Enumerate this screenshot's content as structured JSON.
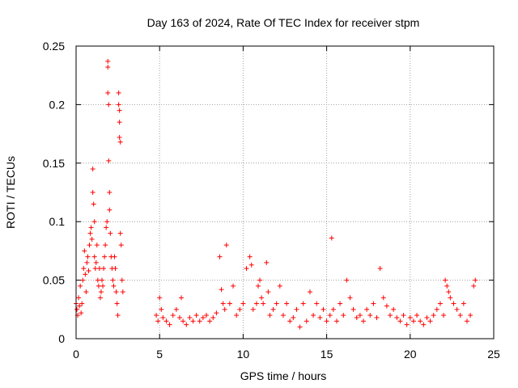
{
  "chart_data": {
    "type": "scatter",
    "title": "Day 163 of 2024, Rate Of TEC Index for receiver stpm",
    "xlabel": "GPS time / hours",
    "ylabel": "ROTI / TECUs",
    "xlim": [
      0,
      25
    ],
    "ylim": [
      0,
      0.25
    ],
    "xticks": [
      0,
      5,
      10,
      15,
      20,
      25
    ],
    "xtick_labels": [
      "0",
      "5",
      "10",
      "15",
      "20",
      "25"
    ],
    "yticks": [
      0,
      0.05,
      0.1,
      0.15,
      0.2,
      0.25
    ],
    "ytick_labels": [
      "0",
      "0.05",
      "0.1",
      "0.15",
      "0.2",
      "0.25"
    ],
    "grid": true,
    "marker": "+",
    "series": [
      {
        "name": "ROTI",
        "color": "#ff0000",
        "x": [
          0.0,
          0.05,
          0.1,
          0.15,
          0.2,
          0.25,
          0.3,
          0.35,
          0.4,
          0.45,
          0.5,
          0.55,
          0.6,
          0.65,
          0.7,
          0.75,
          0.8,
          0.85,
          0.9,
          0.95,
          1.0,
          1.0,
          1.05,
          1.1,
          1.1,
          1.15,
          1.2,
          1.25,
          1.3,
          1.35,
          1.4,
          1.45,
          1.5,
          1.55,
          1.6,
          1.65,
          1.7,
          1.75,
          1.8,
          1.85,
          1.9,
          1.9,
          1.9,
          1.95,
          1.95,
          2.0,
          2.0,
          2.05,
          2.1,
          2.15,
          2.2,
          2.25,
          2.3,
          2.35,
          2.4,
          2.45,
          2.5,
          2.55,
          2.55,
          2.6,
          2.6,
          2.6,
          2.65,
          2.65,
          2.7,
          2.75,
          2.8,
          4.8,
          4.9,
          5.0,
          5.1,
          5.2,
          5.4,
          5.6,
          5.8,
          6.0,
          6.2,
          6.3,
          6.4,
          6.6,
          6.8,
          7.0,
          7.2,
          7.4,
          7.6,
          7.8,
          8.0,
          8.2,
          8.4,
          8.6,
          8.7,
          8.8,
          8.9,
          9.0,
          9.2,
          9.4,
          9.6,
          9.8,
          10.0,
          10.2,
          10.4,
          10.5,
          10.6,
          10.8,
          10.9,
          11.0,
          11.1,
          11.2,
          11.4,
          11.5,
          11.6,
          11.8,
          12.0,
          12.2,
          12.4,
          12.6,
          12.8,
          13.0,
          13.2,
          13.4,
          13.6,
          13.8,
          14.0,
          14.2,
          14.4,
          14.6,
          14.8,
          15.0,
          15.2,
          15.3,
          15.4,
          15.6,
          15.8,
          16.0,
          16.2,
          16.4,
          16.6,
          16.8,
          17.0,
          17.2,
          17.4,
          17.6,
          17.8,
          18.0,
          18.2,
          18.4,
          18.6,
          18.8,
          19.0,
          19.2,
          19.4,
          19.6,
          19.8,
          20.0,
          20.2,
          20.4,
          20.6,
          20.8,
          21.0,
          21.2,
          21.4,
          21.6,
          21.8,
          22.0,
          22.1,
          22.2,
          22.3,
          22.4,
          22.6,
          22.8,
          23.0,
          23.2,
          23.4,
          23.6,
          23.8,
          23.9
        ],
        "y": [
          0.03,
          0.025,
          0.02,
          0.035,
          0.028,
          0.045,
          0.022,
          0.03,
          0.05,
          0.06,
          0.075,
          0.055,
          0.04,
          0.065,
          0.07,
          0.058,
          0.08,
          0.09,
          0.095,
          0.085,
          0.145,
          0.125,
          0.115,
          0.1,
          0.07,
          0.06,
          0.065,
          0.08,
          0.05,
          0.045,
          0.06,
          0.035,
          0.04,
          0.05,
          0.045,
          0.06,
          0.07,
          0.08,
          0.095,
          0.1,
          0.237,
          0.232,
          0.21,
          0.2,
          0.152,
          0.125,
          0.11,
          0.09,
          0.07,
          0.06,
          0.05,
          0.045,
          0.07,
          0.06,
          0.04,
          0.03,
          0.02,
          0.21,
          0.2,
          0.195,
          0.185,
          0.172,
          0.168,
          0.09,
          0.08,
          0.05,
          0.04,
          0.02,
          0.015,
          0.035,
          0.025,
          0.018,
          0.015,
          0.012,
          0.02,
          0.025,
          0.018,
          0.035,
          0.015,
          0.012,
          0.018,
          0.015,
          0.02,
          0.015,
          0.018,
          0.02,
          0.015,
          0.018,
          0.022,
          0.07,
          0.042,
          0.03,
          0.025,
          0.08,
          0.03,
          0.045,
          0.02,
          0.025,
          0.03,
          0.06,
          0.07,
          0.063,
          0.025,
          0.03,
          0.045,
          0.05,
          0.035,
          0.03,
          0.065,
          0.04,
          0.02,
          0.025,
          0.03,
          0.045,
          0.02,
          0.03,
          0.015,
          0.018,
          0.025,
          0.01,
          0.03,
          0.015,
          0.04,
          0.02,
          0.03,
          0.018,
          0.025,
          0.015,
          0.02,
          0.086,
          0.025,
          0.015,
          0.03,
          0.02,
          0.05,
          0.035,
          0.025,
          0.018,
          0.02,
          0.015,
          0.025,
          0.02,
          0.03,
          0.018,
          0.06,
          0.035,
          0.028,
          0.02,
          0.025,
          0.018,
          0.015,
          0.02,
          0.012,
          0.018,
          0.015,
          0.02,
          0.015,
          0.012,
          0.018,
          0.015,
          0.02,
          0.025,
          0.03,
          0.02,
          0.05,
          0.045,
          0.04,
          0.035,
          0.03,
          0.025,
          0.02,
          0.03,
          0.015,
          0.02,
          0.045,
          0.05
        ]
      }
    ]
  }
}
